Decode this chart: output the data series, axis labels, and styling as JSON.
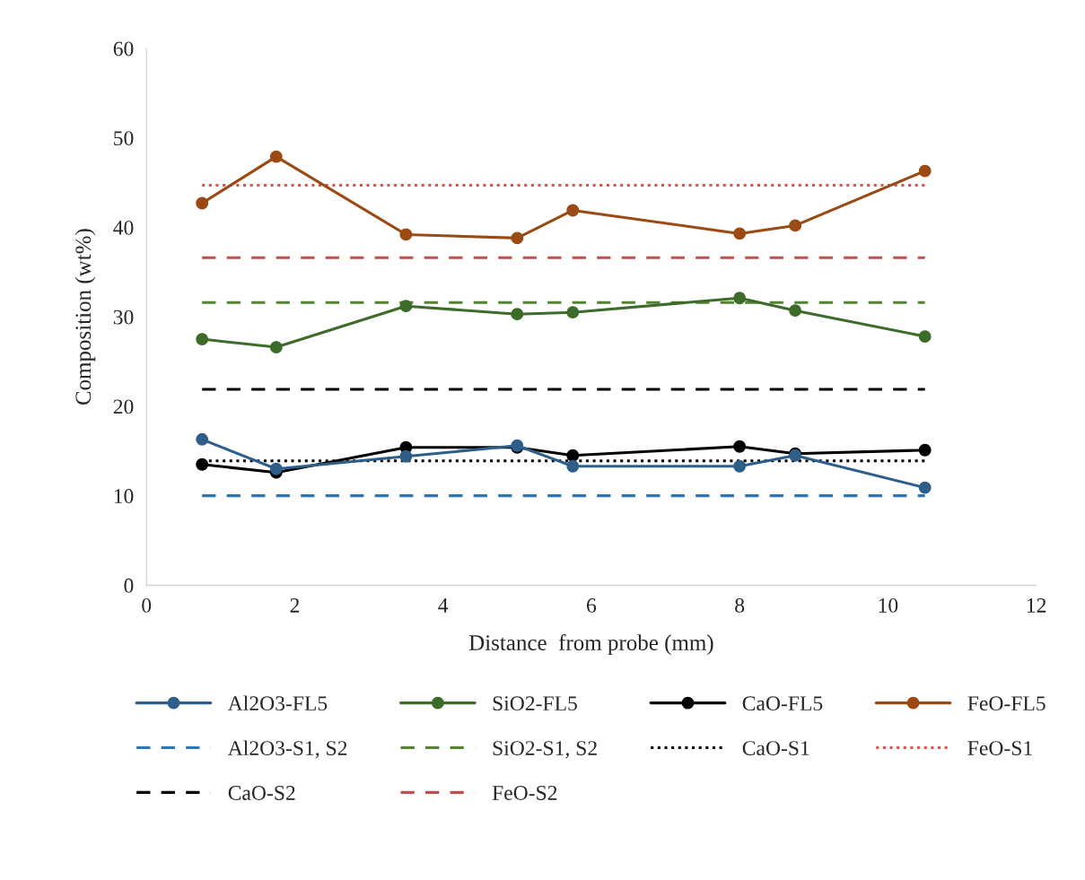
{
  "chart_data": {
    "type": "line",
    "xlabel": "Distance  from probe (mm)",
    "ylabel": "Composition (wt%)",
    "xlim": [
      0,
      12
    ],
    "xticks": [
      0,
      2,
      4,
      6,
      8,
      10,
      12
    ],
    "ylim": [
      0,
      60
    ],
    "yticks": [
      0,
      10,
      20,
      30,
      40,
      50,
      60
    ],
    "grid": false,
    "legend": "bottom",
    "x": [
      0.75,
      1.75,
      3.5,
      5,
      5.75,
      8,
      8.75,
      10.5
    ],
    "series": [
      {
        "name": "Al2O3-FL5",
        "color": "#2e5f8a",
        "marker": "circle",
        "line_style": "solid",
        "values": [
          16.3,
          13.0,
          14.4,
          15.6,
          13.3,
          13.3,
          14.5,
          10.9
        ]
      },
      {
        "name": "SiO2-FL5",
        "color": "#3d6b2a",
        "marker": "circle",
        "line_style": "solid",
        "values": [
          27.5,
          26.6,
          31.2,
          30.3,
          30.5,
          32.1,
          30.7,
          27.8
        ]
      },
      {
        "name": "CaO-FL5",
        "color": "#000000",
        "marker": "circle",
        "line_style": "solid",
        "values": [
          13.5,
          12.6,
          15.4,
          15.4,
          14.5,
          15.5,
          14.7,
          15.1
        ]
      },
      {
        "name": "FeO-FL5",
        "color": "#9c4a13",
        "marker": "circle",
        "line_style": "solid",
        "values": [
          42.7,
          47.9,
          39.2,
          38.8,
          41.9,
          39.3,
          40.2,
          46.3
        ]
      },
      {
        "name": "Al2O3-S1, S2",
        "color": "#2e75b6",
        "marker": "none",
        "line_style": "dashed",
        "values": [
          10.0,
          10.0,
          10.0,
          10.0,
          10.0,
          10.0,
          10.0,
          10.0
        ]
      },
      {
        "name": "SiO2-S1, S2",
        "color": "#548235",
        "marker": "none",
        "line_style": "dashed",
        "values": [
          31.6,
          31.6,
          31.6,
          31.6,
          31.6,
          31.6,
          31.6,
          31.6
        ]
      },
      {
        "name": "CaO-S1",
        "color": "#000000",
        "marker": "none",
        "line_style": "dotted",
        "values": [
          13.9,
          13.9,
          13.9,
          13.9,
          13.9,
          13.9,
          13.9,
          13.9
        ]
      },
      {
        "name": "FeO-S1",
        "color": "#e0504a",
        "marker": "none",
        "line_style": "dotted",
        "values": [
          44.7,
          44.7,
          44.7,
          44.7,
          44.7,
          44.7,
          44.7,
          44.7
        ]
      },
      {
        "name": "CaO-S2",
        "color": "#000000",
        "marker": "none",
        "line_style": "dashed",
        "values": [
          21.9,
          21.9,
          21.9,
          21.9,
          21.9,
          21.9,
          21.9,
          21.9
        ]
      },
      {
        "name": "FeO-S2",
        "color": "#c0504d",
        "marker": "none",
        "line_style": "dashed",
        "values": [
          36.6,
          36.6,
          36.6,
          36.6,
          36.6,
          36.6,
          36.6,
          36.6
        ]
      }
    ]
  }
}
